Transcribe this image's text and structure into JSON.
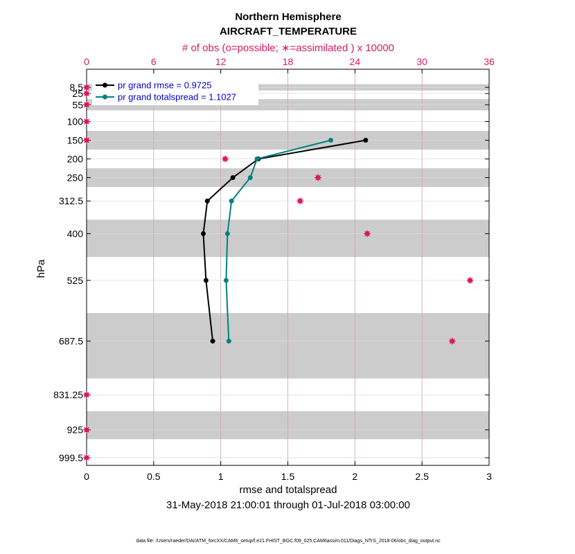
{
  "chart_data": {
    "type": "line",
    "title": "Northern Hemisphere",
    "subtitle": "AIRCRAFT_TEMPERATURE",
    "top_axis_label": "# of obs (o=possible; ∗=assimilated ) x 10000",
    "xlabel": "rmse and totalspread",
    "ylabel": "hPa",
    "date_range": "31-May-2018 21:00:01 through 01-Jul-2018 03:00:00",
    "footnote": "data file: /Users/raeder/DAI/ATM_forcXX/CAM6_setup/f.e21.FHIST_BGC.f09_025.CAM6assim.011/Diags_NTrS_2018-06/obs_diag_output.nc",
    "xlim": [
      0,
      3
    ],
    "xticks": [
      0,
      0.5,
      1,
      1.5,
      2,
      2.5,
      3
    ],
    "xtick_labels": [
      "0",
      "0.5",
      "1",
      "1.5",
      "2",
      "2.5",
      "3"
    ],
    "top_xlim": [
      0,
      36
    ],
    "top_xticks": [
      0,
      6,
      12,
      18,
      24,
      30,
      36
    ],
    "top_xtick_labels": [
      "0",
      "6",
      "12",
      "18",
      "24",
      "30",
      "36"
    ],
    "yaxis": "pressure (hPa), decreasing upward",
    "ylim": [
      1020,
      -40
    ],
    "levels": [
      8.5,
      25,
      55,
      100,
      150,
      200,
      250,
      312.5,
      400,
      525,
      687.5,
      831.25,
      925,
      999.5
    ],
    "level_labels": [
      "8.5",
      "25",
      "55",
      "100",
      "150",
      "200",
      "250",
      "312.5",
      "400",
      "525",
      "687.5",
      "831.25",
      "925",
      "999.5"
    ],
    "layer_bands": [
      [
        0,
        17
      ],
      [
        40,
        70
      ],
      [
        125,
        175
      ],
      [
        225,
        275
      ],
      [
        362.5,
        462.5
      ],
      [
        612.5,
        787.5
      ],
      [
        875,
        950
      ]
    ],
    "series": [
      {
        "name": "pr grand rmse = 0.9725",
        "color": "#000000",
        "levels": [
          150,
          200,
          250,
          312.5,
          400,
          525,
          687.5
        ],
        "values": [
          2.08,
          1.28,
          1.09,
          0.9,
          0.87,
          0.89,
          0.94
        ]
      },
      {
        "name": "pr grand totalspread = 1.1027",
        "color": "#008080",
        "levels": [
          150,
          200,
          250,
          312.5,
          400,
          525,
          687.5
        ],
        "values": [
          1.82,
          1.27,
          1.22,
          1.08,
          1.05,
          1.04,
          1.06
        ]
      }
    ],
    "obs_counts": {
      "color": "#d81b60",
      "levels": [
        8.5,
        25,
        55,
        100,
        150,
        200,
        250,
        312.5,
        400,
        525,
        687.5,
        831.25,
        925,
        999.5
      ],
      "values_x10000": [
        0,
        0,
        0,
        0,
        0,
        12.4,
        20.7,
        19.1,
        25.1,
        34.3,
        32.7,
        0,
        0,
        0
      ]
    },
    "grid": true,
    "legend": "top-left"
  }
}
